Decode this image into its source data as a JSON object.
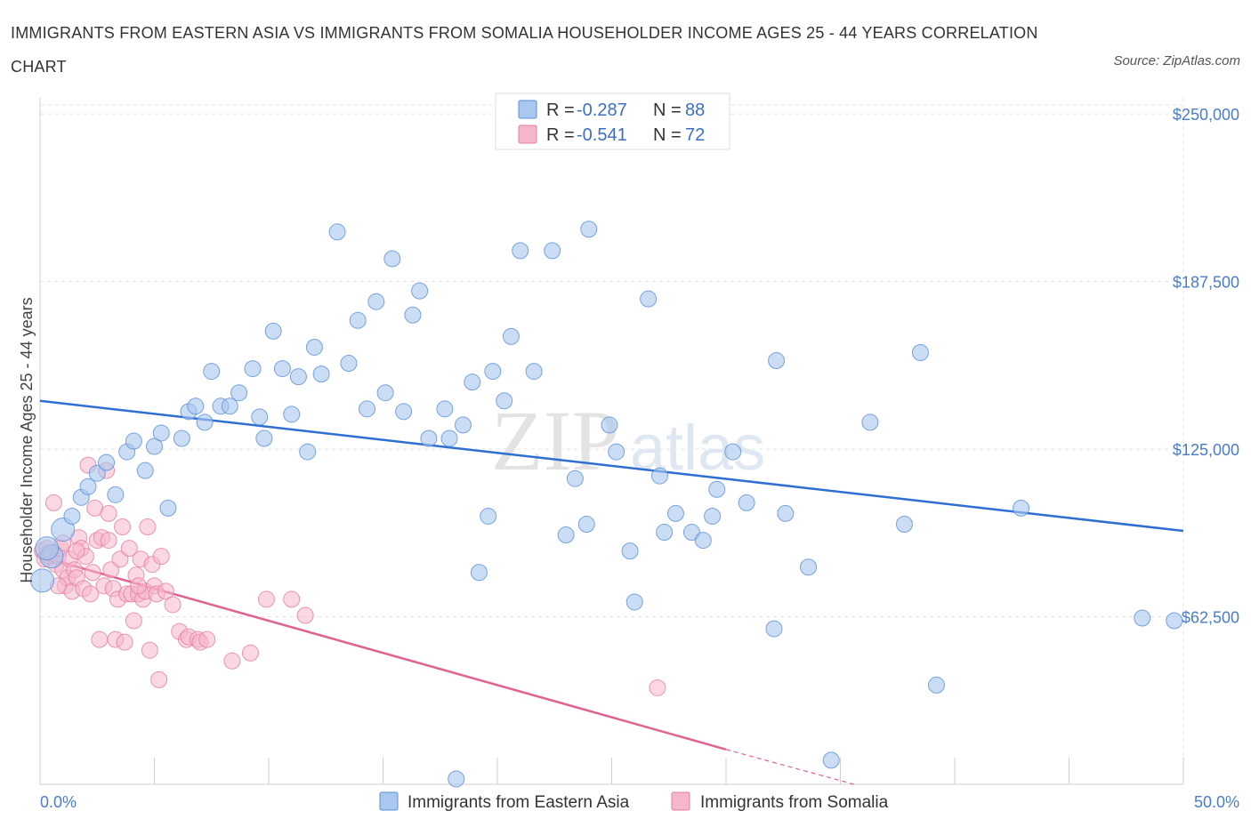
{
  "title": "IMMIGRANTS FROM EASTERN ASIA VS IMMIGRANTS FROM SOMALIA HOUSEHOLDER INCOME AGES 25 - 44 YEARS CORRELATION CHART",
  "source": "Source: ZipAtlas.com",
  "watermark": {
    "zip": "ZIP",
    "atlas": "atlas"
  },
  "legend_top": [
    {
      "r_label": "R =",
      "r_value": "-0.287",
      "n_label": "N =",
      "n_value": "88",
      "color": "#a9c7ef"
    },
    {
      "r_label": "R =",
      "r_value": "-0.541",
      "n_label": "N =",
      "n_value": "72",
      "color": "#f6b6ca"
    }
  ],
  "legend_bottom": [
    {
      "label": "Immigrants from Eastern Asia",
      "color": "#a9c7ef"
    },
    {
      "label": "Immigrants from Somalia",
      "color": "#f6b6ca"
    }
  ],
  "colors": {
    "blue_fill": "#a9c7ef",
    "blue_stroke": "#5b8fd6",
    "blue_line": "#2e6fd1",
    "pink_fill": "#f6b6ca",
    "pink_stroke": "#e47ea0",
    "pink_line": "#e0628f",
    "grid": "#e3e3e3",
    "tick_text": "#4a7cc9"
  },
  "chart_data": {
    "type": "scatter",
    "title": "IMMIGRANTS FROM EASTERN ASIA VS IMMIGRANTS FROM SOMALIA HOUSEHOLDER INCOME AGES 25 - 44 YEARS CORRELATION CHART",
    "xlabel": "",
    "ylabel": "Householder Income Ages 25 - 44 years",
    "xlim": [
      0,
      50
    ],
    "ylim": [
      0,
      256000
    ],
    "x_tick_labels": [
      "0.0%",
      "50.0%"
    ],
    "y_ticks": [
      62500,
      125000,
      187500,
      250000
    ],
    "y_tick_labels": [
      "$62,500",
      "$125,000",
      "$187,500",
      "$250,000"
    ],
    "grid": true,
    "legend_position": "top-center",
    "series": [
      {
        "name": "Immigrants from Eastern Asia",
        "color": "#a9c7ef",
        "trend": {
          "x": [
            0,
            50
          ],
          "y": [
            143000,
            94500
          ]
        },
        "points": [
          [
            0.1,
            76000
          ],
          [
            0.5,
            85000
          ],
          [
            1.0,
            95000
          ],
          [
            1.4,
            100000
          ],
          [
            1.8,
            107000
          ],
          [
            2.1,
            111000
          ],
          [
            2.5,
            116000
          ],
          [
            2.9,
            120000
          ],
          [
            3.3,
            108000
          ],
          [
            3.8,
            124000
          ],
          [
            4.1,
            128000
          ],
          [
            4.6,
            117000
          ],
          [
            5.0,
            126000
          ],
          [
            5.3,
            131000
          ],
          [
            5.6,
            103000
          ],
          [
            6.2,
            129000
          ],
          [
            6.5,
            139000
          ],
          [
            6.8,
            141000
          ],
          [
            7.2,
            135000
          ],
          [
            7.5,
            154000
          ],
          [
            7.9,
            141000
          ],
          [
            8.3,
            141000
          ],
          [
            8.7,
            146000
          ],
          [
            9.3,
            155000
          ],
          [
            9.6,
            137000
          ],
          [
            9.8,
            129000
          ],
          [
            10.2,
            169000
          ],
          [
            10.6,
            155000
          ],
          [
            11.0,
            138000
          ],
          [
            11.3,
            152000
          ],
          [
            11.7,
            124000
          ],
          [
            12.0,
            163000
          ],
          [
            12.3,
            153000
          ],
          [
            13.0,
            206000
          ],
          [
            13.5,
            157000
          ],
          [
            13.9,
            173000
          ],
          [
            14.3,
            140000
          ],
          [
            14.7,
            180000
          ],
          [
            15.1,
            146000
          ],
          [
            15.4,
            196000
          ],
          [
            15.9,
            139000
          ],
          [
            16.3,
            175000
          ],
          [
            16.6,
            184000
          ],
          [
            17.0,
            129000
          ],
          [
            17.7,
            140000
          ],
          [
            17.9,
            129000
          ],
          [
            18.2,
            2000
          ],
          [
            18.5,
            134000
          ],
          [
            18.9,
            150000
          ],
          [
            19.2,
            79000
          ],
          [
            19.6,
            100000
          ],
          [
            19.8,
            154000
          ],
          [
            20.3,
            143000
          ],
          [
            20.6,
            167000
          ],
          [
            21.0,
            199000
          ],
          [
            21.6,
            154000
          ],
          [
            22.4,
            199000
          ],
          [
            23.0,
            93000
          ],
          [
            23.4,
            114000
          ],
          [
            23.9,
            97000
          ],
          [
            24.0,
            207000
          ],
          [
            24.9,
            134000
          ],
          [
            25.2,
            124000
          ],
          [
            25.8,
            87000
          ],
          [
            26.0,
            68000
          ],
          [
            26.6,
            181000
          ],
          [
            27.1,
            115000
          ],
          [
            27.3,
            94000
          ],
          [
            27.8,
            101000
          ],
          [
            28.5,
            94000
          ],
          [
            29.0,
            91000
          ],
          [
            29.4,
            100000
          ],
          [
            29.6,
            110000
          ],
          [
            30.3,
            124000
          ],
          [
            30.9,
            105000
          ],
          [
            32.1,
            58000
          ],
          [
            32.2,
            158000
          ],
          [
            32.6,
            101000
          ],
          [
            33.6,
            81000
          ],
          [
            34.6,
            9000
          ],
          [
            36.3,
            135000
          ],
          [
            37.8,
            97000
          ],
          [
            38.5,
            161000
          ],
          [
            39.2,
            37000
          ],
          [
            42.9,
            103000
          ],
          [
            48.2,
            62000
          ],
          [
            49.6,
            61000
          ],
          [
            0.3,
            88000
          ]
        ]
      },
      {
        "name": "Immigrants from Somalia",
        "color": "#f6b6ca",
        "trend": {
          "x": [
            0,
            30
          ],
          "y": [
            85000,
            13000
          ]
        },
        "trend_dashed_extension": {
          "x": [
            30,
            35.6
          ],
          "y": [
            13000,
            0
          ]
        },
        "points": [
          [
            0.1,
            87000
          ],
          [
            0.2,
            84000
          ],
          [
            0.3,
            88000
          ],
          [
            0.4,
            85000
          ],
          [
            0.5,
            86000
          ],
          [
            0.6,
            105000
          ],
          [
            0.7,
            82000
          ],
          [
            0.8,
            85000
          ],
          [
            0.9,
            88000
          ],
          [
            1.0,
            80000
          ],
          [
            1.0,
            90000
          ],
          [
            1.1,
            74000
          ],
          [
            1.2,
            77000
          ],
          [
            1.3,
            84000
          ],
          [
            1.4,
            72000
          ],
          [
            1.5,
            80000
          ],
          [
            1.6,
            77000
          ],
          [
            1.7,
            92000
          ],
          [
            1.8,
            88000
          ],
          [
            1.9,
            73000
          ],
          [
            2.0,
            85000
          ],
          [
            2.1,
            119000
          ],
          [
            2.2,
            71000
          ],
          [
            2.3,
            79000
          ],
          [
            2.4,
            103000
          ],
          [
            2.5,
            91000
          ],
          [
            2.6,
            54000
          ],
          [
            2.7,
            92000
          ],
          [
            2.8,
            74000
          ],
          [
            2.9,
            117000
          ],
          [
            3.0,
            101000
          ],
          [
            3.1,
            80000
          ],
          [
            3.2,
            73000
          ],
          [
            3.3,
            54000
          ],
          [
            3.4,
            69000
          ],
          [
            3.5,
            84000
          ],
          [
            3.6,
            96000
          ],
          [
            3.7,
            53000
          ],
          [
            3.8,
            71000
          ],
          [
            3.9,
            88000
          ],
          [
            4.0,
            71000
          ],
          [
            4.1,
            61000
          ],
          [
            4.2,
            78000
          ],
          [
            4.3,
            71000
          ],
          [
            4.4,
            84000
          ],
          [
            4.5,
            69000
          ],
          [
            4.6,
            72000
          ],
          [
            4.7,
            96000
          ],
          [
            4.8,
            50000
          ],
          [
            4.9,
            82000
          ],
          [
            5.0,
            74000
          ],
          [
            5.1,
            71000
          ],
          [
            5.2,
            39000
          ],
          [
            5.3,
            85000
          ],
          [
            5.5,
            72000
          ],
          [
            5.8,
            67000
          ],
          [
            6.1,
            57000
          ],
          [
            6.4,
            54000
          ],
          [
            6.5,
            55000
          ],
          [
            6.9,
            54000
          ],
          [
            7.0,
            53000
          ],
          [
            7.3,
            54000
          ],
          [
            8.4,
            46000
          ],
          [
            9.2,
            49000
          ],
          [
            9.9,
            69000
          ],
          [
            11.0,
            69000
          ],
          [
            11.6,
            63000
          ],
          [
            27.0,
            36000
          ],
          [
            0.8,
            74000
          ],
          [
            1.6,
            87000
          ],
          [
            3.0,
            91000
          ],
          [
            4.3,
            74000
          ]
        ]
      }
    ]
  }
}
